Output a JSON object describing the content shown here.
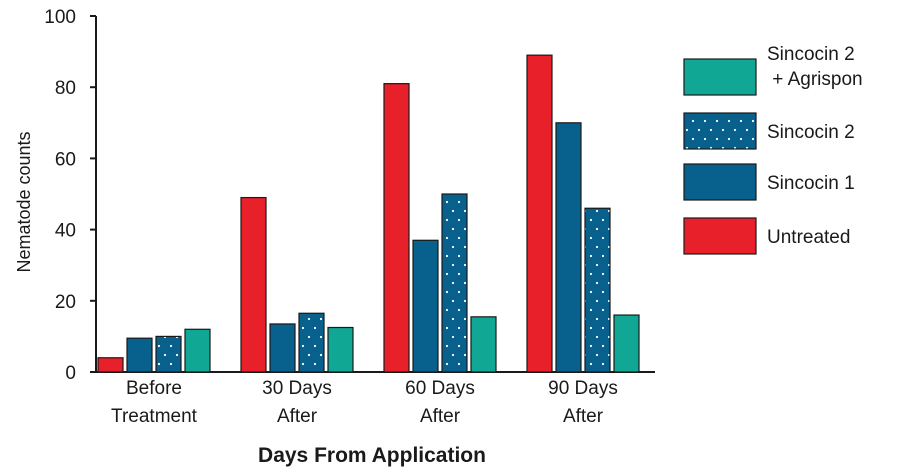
{
  "chart_data": {
    "type": "bar",
    "xlabel": "Days From Application",
    "ylabel": "Nematode counts",
    "ylim": [
      0,
      100
    ],
    "yticks": [
      0,
      20,
      40,
      60,
      80,
      100
    ],
    "grid": false,
    "legend_position": "right",
    "categories": [
      [
        "Before",
        "Treatment"
      ],
      [
        "30 Days",
        "After"
      ],
      [
        "60 Days",
        "After"
      ],
      [
        "90 Days",
        "After"
      ]
    ],
    "series": [
      {
        "name": "Untreated",
        "color": "#e8202a",
        "pattern": "solid",
        "values": [
          4,
          49,
          81,
          89
        ]
      },
      {
        "name": "Sincocin 1",
        "color": "#07618c",
        "pattern": "solid",
        "values": [
          9.5,
          13.5,
          37,
          70
        ]
      },
      {
        "name": "Sincocin 2",
        "color": "#07618c",
        "pattern": "dotted",
        "values": [
          10,
          16.5,
          50,
          46
        ]
      },
      {
        "name": "Sincocin 2 + Agrispon",
        "color": "#10a795",
        "pattern": "solid",
        "values": [
          12,
          12.5,
          15.5,
          16
        ]
      }
    ],
    "legend": [
      {
        "series": 3,
        "lines": [
          "Sincocin 2",
          " + Agrispon"
        ]
      },
      {
        "series": 2,
        "lines": [
          "Sincocin 2"
        ]
      },
      {
        "series": 1,
        "lines": [
          "Sincocin 1"
        ]
      },
      {
        "series": 0,
        "lines": [
          "Untreated"
        ]
      }
    ]
  }
}
